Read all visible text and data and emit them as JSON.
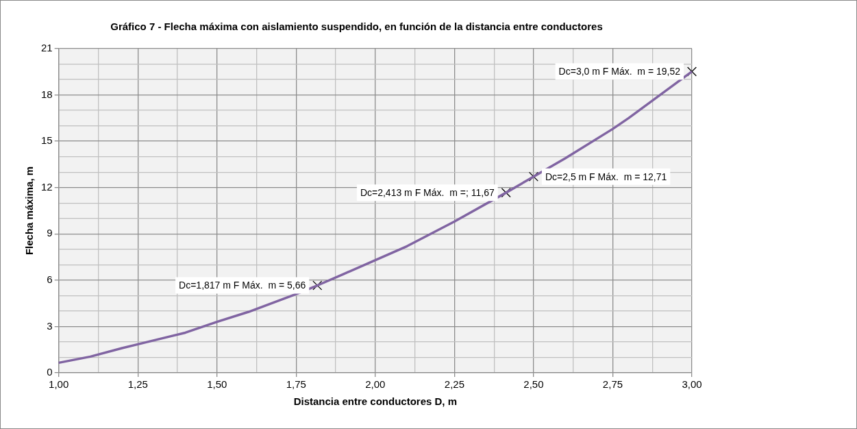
{
  "chart_data": {
    "type": "line",
    "title": "Gráfico 7 - Flecha máxima con aislamiento suspendido, en función de la distancia entre conductores",
    "xlabel": "Distancia entre conductores D, m",
    "ylabel": "Flecha máxima, m",
    "xlim": [
      1,
      3
    ],
    "ylim": [
      0,
      21
    ],
    "xticks": [
      {
        "value": 1,
        "label": "1,00"
      },
      {
        "value": 1.125,
        "label": null
      },
      {
        "value": 1.25,
        "label": "1,25"
      },
      {
        "value": 1.375,
        "label": null
      },
      {
        "value": 1.5,
        "label": "1,50"
      },
      {
        "value": 1.625,
        "label": null
      },
      {
        "value": 1.75,
        "label": "1,75"
      },
      {
        "value": 1.875,
        "label": null
      },
      {
        "value": 2,
        "label": "2,00"
      },
      {
        "value": 2.125,
        "label": null
      },
      {
        "value": 2.25,
        "label": "2,25"
      },
      {
        "value": 2.375,
        "label": null
      },
      {
        "value": 2.5,
        "label": "2,50"
      },
      {
        "value": 2.625,
        "label": null
      },
      {
        "value": 2.75,
        "label": "2,75"
      },
      {
        "value": 2.875,
        "label": null
      },
      {
        "value": 3,
        "label": "3,00"
      }
    ],
    "yticks": [
      0,
      {
        "value": 1,
        "label": null
      },
      {
        "value": 2,
        "label": null
      },
      3,
      {
        "value": 4,
        "label": null
      },
      {
        "value": 5,
        "label": null
      },
      6,
      {
        "value": 7,
        "label": null
      },
      {
        "value": 8,
        "label": null
      },
      9,
      {
        "value": 10,
        "label": null
      },
      {
        "value": 11,
        "label": null
      },
      12,
      {
        "value": 13,
        "label": null
      },
      {
        "value": 14,
        "label": null
      },
      15,
      {
        "value": 16,
        "label": null
      },
      {
        "value": 17,
        "label": null
      },
      18,
      {
        "value": 19,
        "label": null
      },
      {
        "value": 20,
        "label": null
      },
      21
    ],
    "grid": true,
    "legend": false,
    "series": [
      {
        "color": "#8064a2",
        "marker": "none",
        "x": [
          1,
          1.1,
          1.2,
          1.25,
          1.4,
          1.5,
          1.6,
          1.75,
          1.817,
          1.9,
          2,
          2.1,
          2.25,
          2.413,
          2.5,
          2.6,
          2.75,
          2.8,
          3
        ],
        "values": [
          0.65,
          1.05,
          1.6,
          1.85,
          2.6,
          3.3,
          3.95,
          5.1,
          5.66,
          6.4,
          7.3,
          8.2,
          9.8,
          11.67,
          12.71,
          13.9,
          15.8,
          16.5,
          19.52
        ]
      },
      {
        "type": "scatter",
        "color": "#000000",
        "marker": "cross",
        "x": [
          1.817,
          2.413,
          2.5,
          3
        ],
        "values": [
          5.66,
          11.67,
          12.71,
          19.52
        ]
      }
    ],
    "annotations": [
      {
        "text": "Dc=1,817 m F Máx.  m = 5,66",
        "x": 1.817,
        "y": 5.66
      },
      {
        "text": "Dc=2,413 m F Máx.  m =; 11,67",
        "x": 2.413,
        "y": 11.67
      },
      {
        "text": "Dc=2,5 m F Máx.  m = 12,71",
        "x": 2.5,
        "y": 12.71
      },
      {
        "text": "Dc=3,0 m F Máx.  m = 19,52",
        "x": 3,
        "y": 19.52
      }
    ]
  }
}
